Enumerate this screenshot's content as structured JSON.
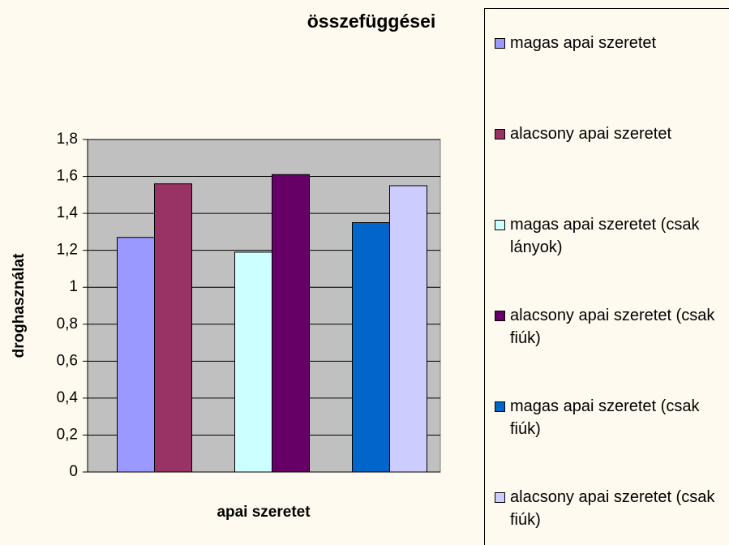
{
  "chart_data": {
    "type": "bar",
    "title": "összefüggései",
    "y_label": "droghasználat",
    "x_label": "apai szeretet",
    "categories": [
      null,
      null,
      null
    ],
    "series": [
      {
        "name": "magas apai szeretet",
        "color": "#9999ff",
        "values": [
          1.27,
          null,
          null
        ]
      },
      {
        "name": "alacsony apai szeretet",
        "color": "#993366",
        "values": [
          1.56,
          null,
          null
        ]
      },
      {
        "name": "magas apai szeretet (csak lányok)",
        "color": "#ccffff",
        "values": [
          null,
          1.19,
          null
        ]
      },
      {
        "name": "alacsony apai szeretet (csak fiúk)",
        "color": "#660066",
        "values": [
          null,
          1.61,
          null
        ]
      },
      {
        "name": "magas apai szeretet (csak fiúk)",
        "color": "#0066cc",
        "values": [
          null,
          null,
          1.35
        ]
      },
      {
        "name": "alacsony apai szeretet (csak fiúk)",
        "color": "#ccccff",
        "values": [
          null,
          null,
          1.55
        ]
      }
    ],
    "ylim": [
      0,
      1.8
    ],
    "yticks": [
      0,
      {
        "value": 0.2,
        "label": "0,2"
      },
      {
        "value": 0.4,
        "label": "0,4"
      },
      {
        "value": 0.6,
        "label": "0,6"
      },
      {
        "value": 0.8,
        "label": "0,8"
      },
      1,
      {
        "value": 1.2,
        "label": "1,2"
      },
      {
        "value": 1.4,
        "label": "1,4"
      },
      {
        "value": 1.6,
        "label": "1,6"
      },
      {
        "value": 1.8,
        "label": "1,8"
      }
    ],
    "grid": true,
    "legend": "right"
  }
}
